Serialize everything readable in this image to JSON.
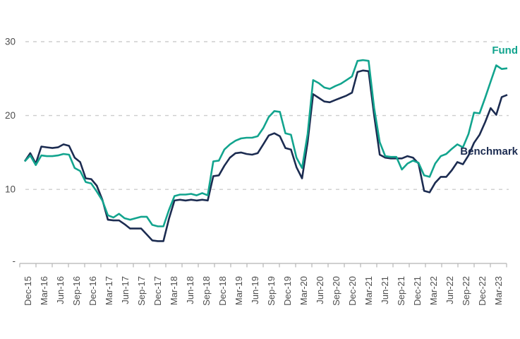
{
  "chart": {
    "colors": {
      "fund": "#12A48E",
      "benchmark": "#1C2C51",
      "grid": "#CDCDCD",
      "axis": "#B5B5B5",
      "tick_text": "#4D4D4D",
      "background": "#FFFFFF"
    },
    "series_end_labels": {
      "fund": "Fund",
      "benchmark": "Benchmark"
    }
  },
  "chart_data": {
    "type": "line",
    "title": "",
    "xlabel": "",
    "ylabel": "",
    "x_start": "Dec-15",
    "x_end": "Mar-23",
    "x_interval": "monthly",
    "n_points": 88,
    "ylim": [
      0,
      30
    ],
    "grid": "horizontal-dashed",
    "legend": "series-end-labels",
    "x_tick_labels": [
      "Dec-15",
      "Mar-16",
      "Jun-16",
      "Sep-16",
      "Dec-16",
      "Mar-17",
      "Jun-17",
      "Sep-17",
      "Dec-17",
      "Mar-18",
      "Jun-18",
      "Sep-18",
      "Dec-18",
      "Mar-19",
      "Jun-19",
      "Sep-19",
      "Dec-19",
      "Mar-20",
      "Jun-20",
      "Sep-20",
      "Dec-20",
      "Mar-21",
      "Jun-21",
      "Sep-21",
      "Dec-21",
      "Mar-22",
      "Jun-22",
      "Sep-22",
      "Dec-22",
      "Mar-23"
    ],
    "y_ticks": [
      {
        "value": 30,
        "label": "30",
        "gridline": true
      },
      {
        "value": 20,
        "label": "20",
        "gridline": true
      },
      {
        "value": 10,
        "label": "10",
        "gridline": true
      },
      {
        "value": 0,
        "label": "-",
        "gridline": false
      }
    ],
    "series": [
      {
        "name": "Fund",
        "color": "#12A48E",
        "values": [
          13.8,
          14.6,
          13.3,
          14.6,
          14.5,
          14.5,
          14.6,
          14.8,
          14.7,
          12.9,
          12.5,
          11.0,
          10.8,
          9.7,
          8.5,
          6.5,
          6.2,
          6.7,
          6.1,
          5.9,
          6.1,
          6.3,
          6.3,
          5.2,
          5.0,
          5.0,
          7.2,
          9.1,
          9.3,
          9.3,
          9.4,
          9.2,
          9.5,
          9.2,
          13.8,
          13.9,
          15.4,
          16.1,
          16.6,
          16.9,
          17.0,
          17.0,
          17.2,
          18.3,
          19.8,
          20.6,
          20.5,
          17.6,
          17.4,
          14.3,
          12.9,
          17.5,
          24.8,
          24.4,
          23.8,
          23.6,
          24.0,
          24.3,
          24.8,
          25.3,
          27.4,
          27.5,
          27.4,
          21.0,
          16.4,
          14.5,
          14.4,
          14.4,
          12.7,
          13.5,
          13.9,
          13.6,
          11.9,
          11.7,
          13.5,
          14.5,
          14.8,
          15.5,
          16.1,
          15.7,
          17.5,
          20.4,
          20.3,
          22.4,
          24.6,
          26.8,
          26.3,
          26.4
        ]
      },
      {
        "name": "Benchmark",
        "color": "#1C2C51",
        "values": [
          13.8,
          14.9,
          13.5,
          15.8,
          15.7,
          15.6,
          15.7,
          16.1,
          15.9,
          14.3,
          13.7,
          11.5,
          11.4,
          10.5,
          8.6,
          5.9,
          5.8,
          5.8,
          5.3,
          4.7,
          4.7,
          4.7,
          3.9,
          3.1,
          3.0,
          3.0,
          6.0,
          8.5,
          8.6,
          8.5,
          8.6,
          8.5,
          8.6,
          8.5,
          11.8,
          11.9,
          13.2,
          14.3,
          14.9,
          15.0,
          14.8,
          14.7,
          14.9,
          16.1,
          17.3,
          17.6,
          17.2,
          15.6,
          15.4,
          13.0,
          11.5,
          16.4,
          22.9,
          22.4,
          21.9,
          21.8,
          22.1,
          22.4,
          22.7,
          23.1,
          25.9,
          26.1,
          26.0,
          20.0,
          14.7,
          14.3,
          14.2,
          14.2,
          14.2,
          14.5,
          14.3,
          13.5,
          9.8,
          9.6,
          10.9,
          11.7,
          11.7,
          12.6,
          13.7,
          13.4,
          14.6,
          16.3,
          17.4,
          19.1,
          21.0,
          20.1,
          22.5,
          22.8
        ]
      }
    ]
  }
}
